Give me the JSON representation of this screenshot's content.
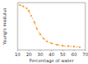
{
  "chart_data": {
    "type": "line",
    "x_label": "Percentage of water",
    "y_label": "Young's modulus",
    "x": [
      12,
      15,
      18,
      20,
      22,
      25,
      27,
      30,
      33,
      36,
      40,
      45,
      50,
      55,
      60,
      65
    ],
    "values": [
      95,
      92,
      88,
      82,
      72,
      58,
      45,
      33,
      24,
      18,
      14,
      11,
      9,
      8,
      7,
      6
    ],
    "color": "#f5a040",
    "marker": "circle",
    "line_style": "dashed",
    "xlim": [
      10,
      70
    ],
    "xticks": [
      10,
      20,
      30,
      40,
      50,
      60,
      70
    ],
    "ylim": [
      0,
      100
    ],
    "tick_labels": "x",
    "grid": false
  }
}
